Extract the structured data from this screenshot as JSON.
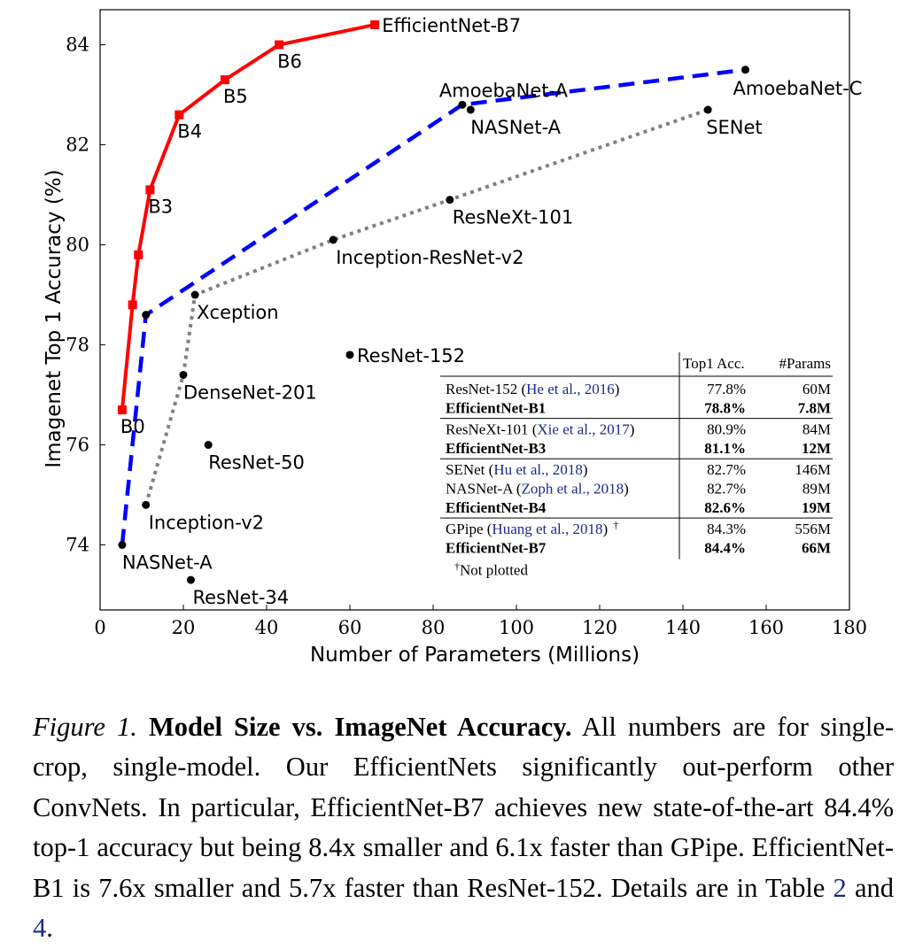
{
  "chart_data": {
    "type": "line",
    "xlabel": "Number of Parameters (Millions)",
    "ylabel": "Imagenet Top 1 Accuracy (%)",
    "xlim": [
      0,
      180
    ],
    "ylim": [
      72.7,
      84.7
    ],
    "xticks": [
      "0",
      "20",
      "40",
      "60",
      "80",
      "100",
      "120",
      "140",
      "160",
      "180"
    ],
    "yticks": [
      "74",
      "76",
      "78",
      "80",
      "82",
      "84"
    ],
    "grid": false,
    "series": [
      {
        "style": "solid",
        "color": "#ff0000",
        "marker": "square",
        "x": [
          5.3,
          7.8,
          9.2,
          12,
          19,
          30,
          43,
          66
        ],
        "y": [
          76.7,
          78.8,
          79.8,
          81.1,
          82.6,
          83.3,
          84.0,
          84.4
        ],
        "point_labels": [
          "B0",
          "",
          "",
          "B3",
          "B4",
          "B5",
          "B6",
          "EfficientNet-B7"
        ]
      },
      {
        "style": "dashed",
        "color": "#0000ff",
        "marker": "circle",
        "x": [
          5.3,
          11,
          87,
          155
        ],
        "y": [
          74.0,
          78.6,
          82.8,
          83.5
        ],
        "point_labels": [
          "NASNet-A",
          "",
          "AmoebaNet-A",
          "AmoebaNet-C"
        ]
      },
      {
        "style": "dotted",
        "color": "#808080",
        "marker": "circle",
        "x": [
          11,
          20,
          22.8,
          56,
          84,
          146
        ],
        "y": [
          74.8,
          77.4,
          79.0,
          80.1,
          80.9,
          82.7
        ],
        "point_labels": [
          "Inception-v2",
          "DenseNet-201",
          "Xception",
          "Inception-ResNet-v2",
          "ResNeXt-101",
          "SENet"
        ]
      }
    ],
    "standalone_points": [
      {
        "label": "NASNet-A",
        "x": 89,
        "y": 82.7
      },
      {
        "label": "ResNet-152",
        "x": 60,
        "y": 77.8
      },
      {
        "label": "ResNet-50",
        "x": 26,
        "y": 76.0
      },
      {
        "label": "ResNet-34",
        "x": 21.8,
        "y": 73.3
      }
    ],
    "inset_table": {
      "headers": [
        "",
        "Top1 Acc.",
        "#Params"
      ],
      "groups": [
        [
          {
            "name": "ResNet-152 ",
            "cite": "He et al., 2016",
            "acc": "77.8%",
            "params": "60M",
            "bold": false
          },
          {
            "name": "EfficientNet-B1",
            "cite": "",
            "acc": "78.8%",
            "params": "7.8M",
            "bold": true
          }
        ],
        [
          {
            "name": "ResNeXt-101 ",
            "cite": "Xie et al., 2017",
            "acc": "80.9%",
            "params": "84M",
            "bold": false
          },
          {
            "name": "EfficientNet-B3",
            "cite": "",
            "acc": "81.1%",
            "params": "12M",
            "bold": true
          }
        ],
        [
          {
            "name": "SENet ",
            "cite": "Hu et al., 2018",
            "acc": "82.7%",
            "params": "146M",
            "bold": false
          },
          {
            "name": "NASNet-A ",
            "cite": "Zoph et al., 2018",
            "acc": "82.7%",
            "params": "89M",
            "bold": false
          },
          {
            "name": "EfficientNet-B4",
            "cite": "",
            "acc": "82.6%",
            "params": "19M",
            "bold": true
          }
        ],
        [
          {
            "name": "GPipe ",
            "cite": "Huang et al., 2018",
            "mark": "†",
            "acc": "84.3%",
            "params": "556M",
            "bold": false
          },
          {
            "name": "EfficientNet-B7",
            "cite": "",
            "acc": "84.4%",
            "params": "66M",
            "bold": true
          }
        ]
      ],
      "footnote_mark": "†",
      "footnote": "Not plotted"
    }
  },
  "caption": {
    "label": "Figure 1.",
    "title": "Model Size vs. ImageNet Accuracy.",
    "text1": "All numbers are for single-crop, single-model. Our EfficientNets significantly out-perform other ConvNets. In particular, EfficientNet-B7 achieves new state-of-the-art 84.4% top-1 accuracy but being 8.4x smaller and 6.1x faster than GPipe. EfficientNet-B1 is 7.6x smaller and 5.7x faster than ResNet-152. Details are in Table",
    "ref1": "2",
    "text2": "and",
    "ref2": "4",
    "text3": "."
  }
}
